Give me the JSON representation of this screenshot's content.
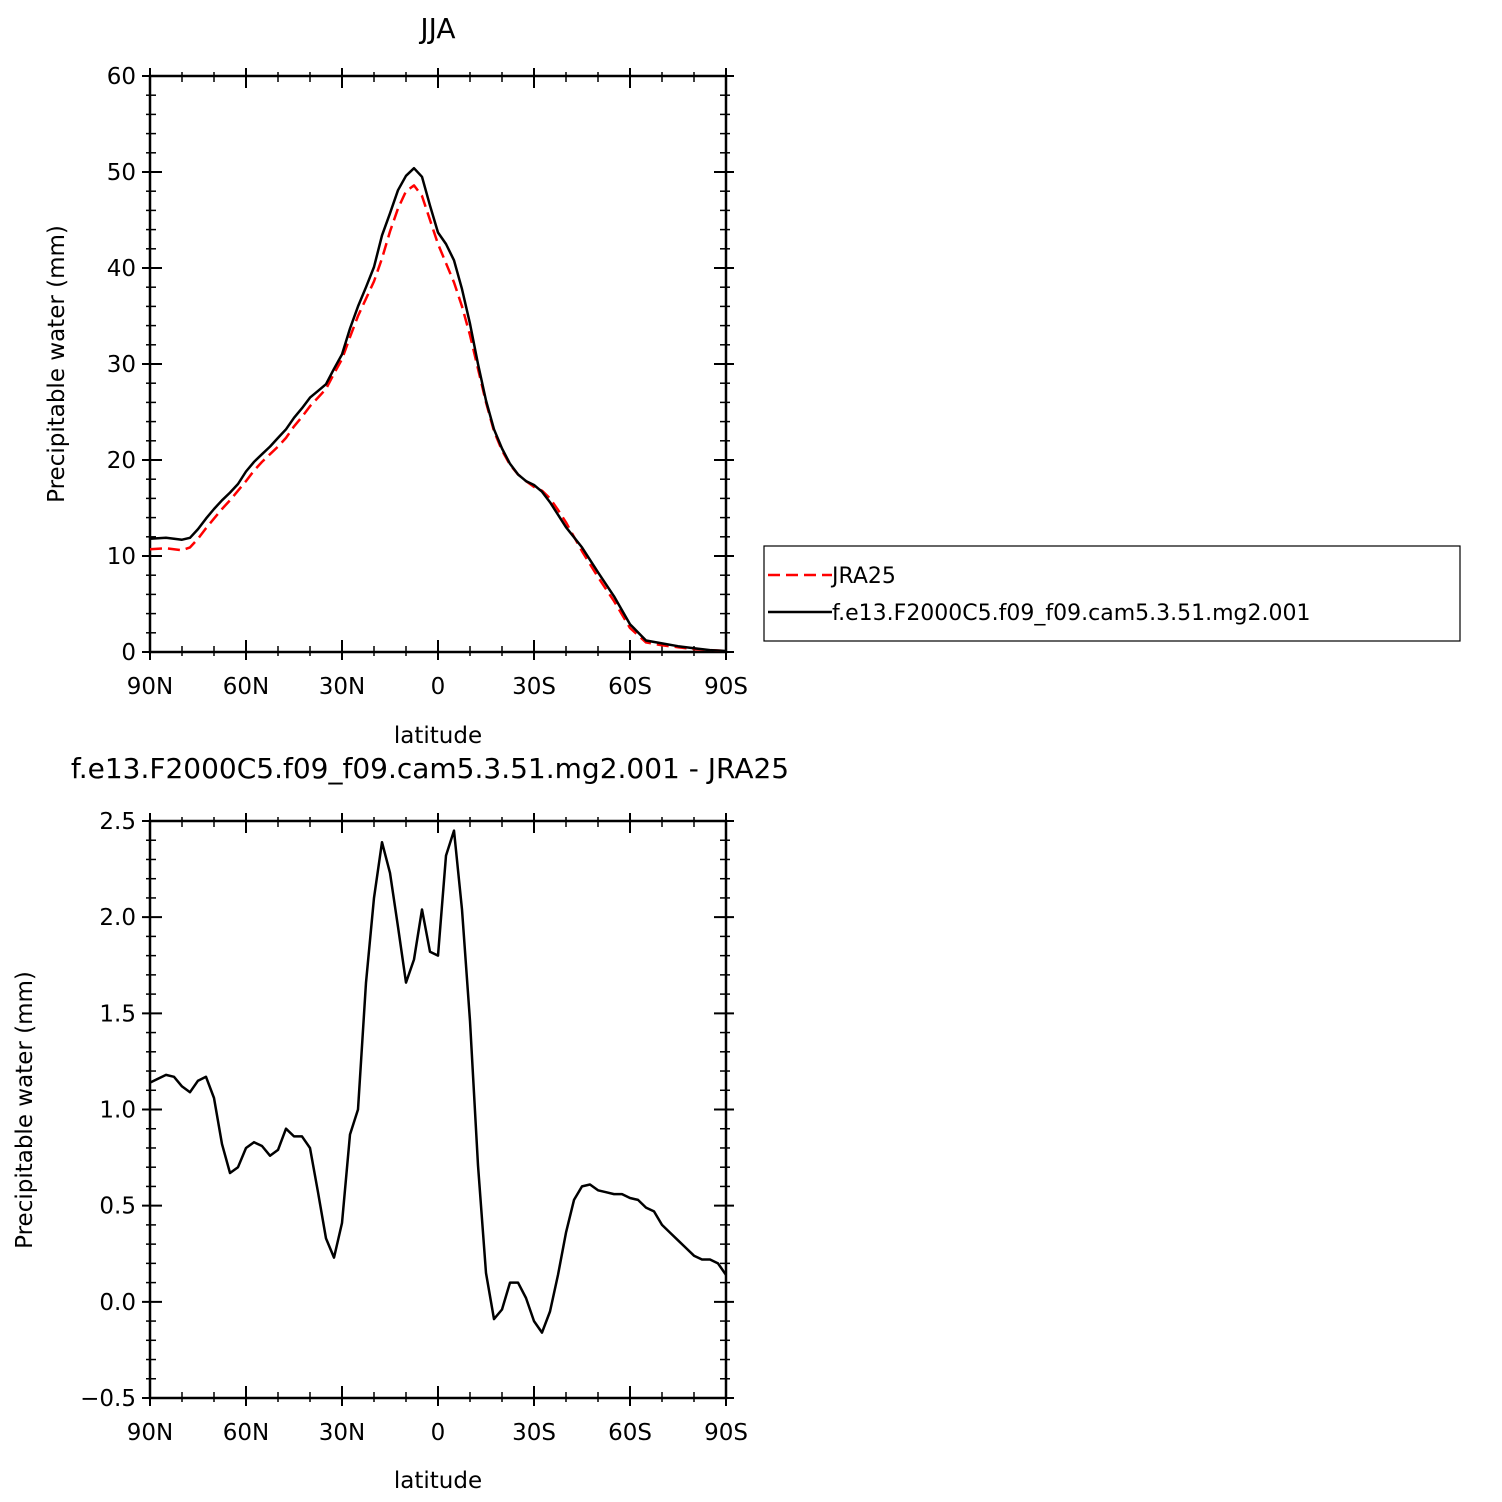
{
  "chart_data": [
    {
      "type": "line",
      "title": "JJA",
      "xlabel": "latitude",
      "ylabel": "Precipitable water (mm)",
      "xlim": [
        90,
        -90
      ],
      "ylim": [
        0,
        60
      ],
      "yticks": [
        0,
        10,
        20,
        30,
        40,
        50,
        60
      ],
      "ytick_labels": [
        "0",
        "10",
        "20",
        "30",
        "40",
        "50",
        "60"
      ],
      "xticks": [
        90,
        60,
        30,
        0,
        -30,
        -60,
        -90
      ],
      "xtick_labels": [
        "90N",
        "60N",
        "30N",
        "0",
        "30S",
        "60S",
        "90S"
      ],
      "legend_position": "right",
      "x": [
        90,
        85,
        80,
        77.5,
        75,
        72.5,
        70,
        67.5,
        65,
        62.5,
        60,
        57.5,
        55,
        52.5,
        50,
        47.5,
        45,
        42.5,
        40,
        37.5,
        35,
        32.5,
        30,
        27.5,
        25,
        22.5,
        20,
        17.5,
        15,
        12.5,
        10,
        7.5,
        5,
        2.5,
        0,
        -2.5,
        -5,
        -7.5,
        -10,
        -12.5,
        -15,
        -17.5,
        -20,
        -22.5,
        -25,
        -27.5,
        -30,
        -32.5,
        -35,
        -37.5,
        -40,
        -45,
        -50,
        -55,
        -60,
        -65,
        -70,
        -75,
        -80,
        -85,
        -90
      ],
      "series": [
        {
          "name": "JRA25",
          "color": "#ff0000",
          "dash": "dashed",
          "values": [
            10.7,
            10.8,
            10.6,
            10.9,
            11.8,
            12.9,
            13.9,
            14.9,
            15.8,
            16.8,
            17.8,
            18.9,
            19.8,
            20.6,
            21.4,
            22.3,
            23.5,
            24.5,
            25.6,
            26.5,
            27.4,
            29.0,
            30.5,
            32.8,
            35.0,
            36.8,
            38.6,
            41.0,
            43.8,
            46.2,
            48.0,
            48.6,
            47.5,
            45.0,
            42.5,
            40.5,
            38.5,
            36.0,
            33.0,
            29.5,
            26.0,
            23.0,
            21.0,
            19.5,
            18.5,
            17.8,
            17.2,
            16.8,
            16.0,
            14.8,
            13.5,
            10.5,
            7.8,
            5.3,
            2.5,
            1.0,
            0.7,
            0.5,
            0.3,
            0.2,
            0.1
          ]
        },
        {
          "name": "f.e13.F2000C5.f09_f09.cam5.3.51.mg2.001",
          "color": "#000000",
          "dash": "solid",
          "values": [
            11.8,
            11.9,
            11.7,
            11.9,
            12.8,
            13.9,
            14.9,
            15.8,
            16.6,
            17.5,
            18.8,
            19.8,
            20.6,
            21.4,
            22.3,
            23.2,
            24.4,
            25.4,
            26.5,
            27.2,
            27.9,
            29.5,
            31.0,
            33.7,
            36.0,
            38.0,
            40.1,
            43.4,
            45.7,
            48.1,
            49.6,
            50.4,
            49.5,
            46.5,
            43.7,
            42.5,
            40.8,
            37.8,
            34.2,
            30.0,
            26.2,
            23.2,
            21.2,
            19.6,
            18.5,
            17.8,
            17.4,
            16.7,
            15.6,
            14.3,
            13.0,
            10.9,
            8.3,
            5.8,
            2.9,
            1.2,
            0.9,
            0.6,
            0.4,
            0.2,
            0.1
          ]
        }
      ]
    },
    {
      "type": "line",
      "title": "f.e13.F2000C5.f09_f09.cam5.3.51.mg2.001 - JRA25",
      "xlabel": "latitude",
      "ylabel": "Precipitable water (mm)",
      "xlim": [
        90,
        -90
      ],
      "ylim": [
        -0.5,
        2.5
      ],
      "yticks": [
        -0.5,
        0.0,
        0.5,
        1.0,
        1.5,
        2.0,
        2.5
      ],
      "ytick_labels": [
        "−0.5",
        "0.0",
        "0.5",
        "1.0",
        "1.5",
        "2.0",
        "2.5"
      ],
      "xticks": [
        90,
        60,
        30,
        0,
        -30,
        -60,
        -90
      ],
      "xtick_labels": [
        "90N",
        "60N",
        "30N",
        "0",
        "30S",
        "60S",
        "90S"
      ],
      "x": [
        90,
        87.5,
        85,
        82.5,
        80,
        77.5,
        75,
        72.5,
        70,
        67.5,
        65,
        62.5,
        60,
        57.5,
        55,
        52.5,
        50,
        47.5,
        45,
        42.5,
        40,
        37.5,
        35,
        32.5,
        30,
        27.5,
        25,
        22.5,
        20,
        17.5,
        15,
        12.5,
        10,
        7.5,
        5,
        2.5,
        0,
        -2.5,
        -5,
        -7.5,
        -10,
        -12.5,
        -15,
        -17.5,
        -20,
        -22.5,
        -25,
        -27.5,
        -30,
        -32.5,
        -35,
        -37.5,
        -40,
        -42.5,
        -45,
        -47.5,
        -50,
        -52.5,
        -55,
        -57.5,
        -60,
        -62.5,
        -65,
        -67.5,
        -70,
        -72.5,
        -75,
        -77.5,
        -80,
        -82.5,
        -85,
        -87.5,
        -90
      ],
      "series": [
        {
          "color": "#000000",
          "values": [
            1.14,
            1.16,
            1.18,
            1.17,
            1.12,
            1.09,
            1.15,
            1.17,
            1.06,
            0.82,
            0.67,
            0.7,
            0.8,
            0.83,
            0.81,
            0.76,
            0.79,
            0.9,
            0.86,
            0.86,
            0.8,
            0.57,
            0.33,
            0.23,
            0.41,
            0.87,
            1.0,
            1.66,
            2.1,
            2.39,
            2.23,
            1.95,
            1.66,
            1.78,
            2.04,
            1.82,
            1.8,
            2.32,
            2.45,
            2.04,
            1.46,
            0.71,
            0.15,
            -0.09,
            -0.04,
            0.1,
            0.1,
            0.02,
            -0.1,
            -0.16,
            -0.05,
            0.14,
            0.36,
            0.53,
            0.6,
            0.61,
            0.58,
            0.57,
            0.56,
            0.56,
            0.54,
            0.53,
            0.49,
            0.47,
            0.4,
            0.36,
            0.32,
            0.28,
            0.24,
            0.22,
            0.22,
            0.2,
            0.14
          ]
        }
      ]
    }
  ]
}
